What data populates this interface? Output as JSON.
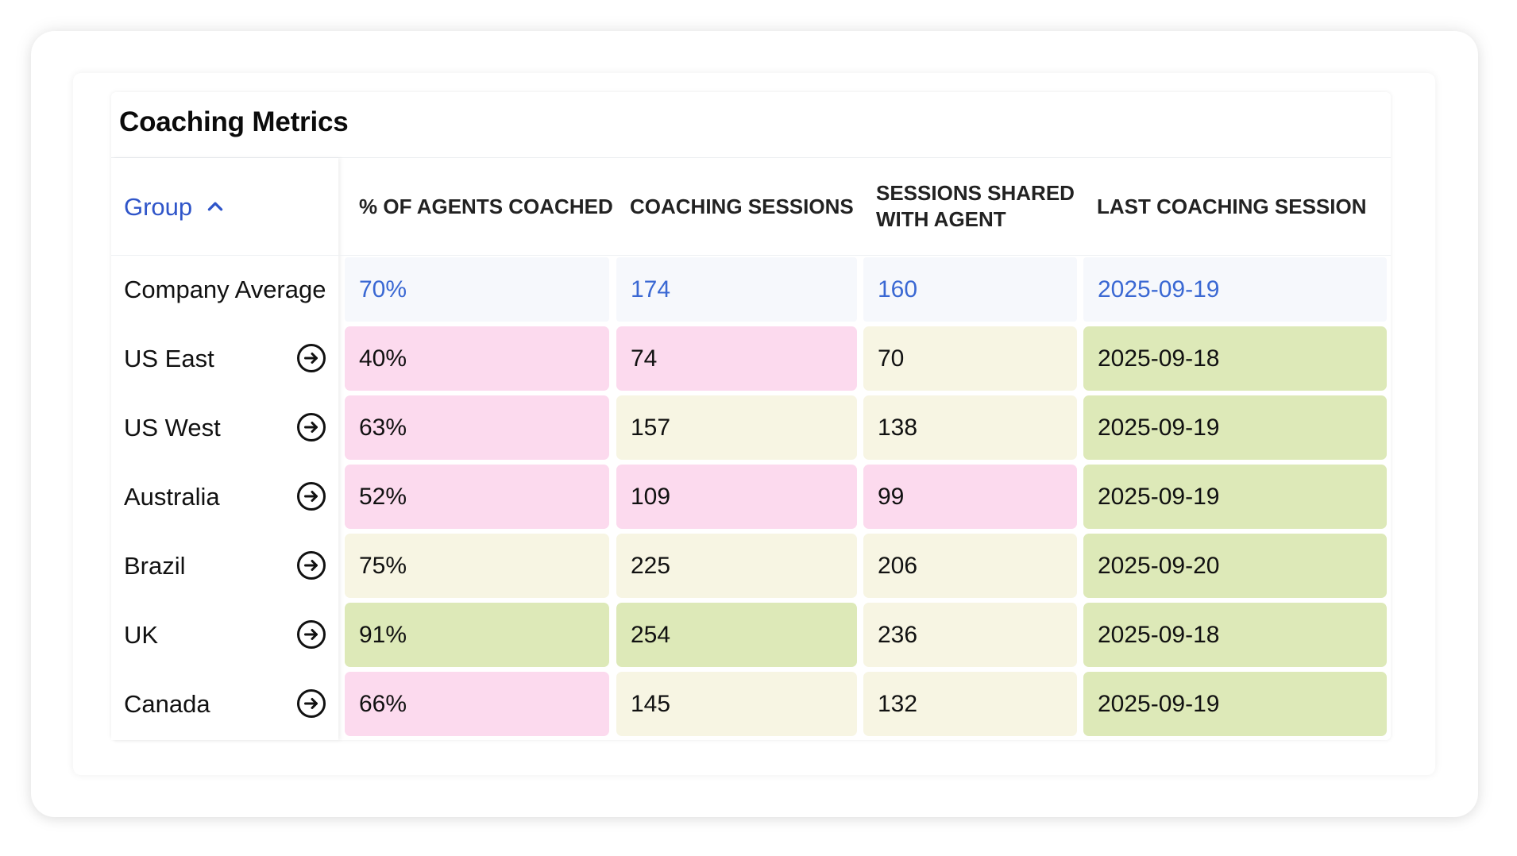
{
  "title": "Coaching Metrics",
  "columns": {
    "group": "Group",
    "agents_coached": "% OF AGENTS COACHED",
    "coaching_sessions": "COACHING SESSIONS",
    "sessions_shared": "SESSIONS SHARED WITH AGENT",
    "last_session": "LAST COACHING SESSION"
  },
  "sort_icon": "chevron-up-icon",
  "row_action_icon": "arrow-right-circle-icon",
  "colors": {
    "accent": "#2f55c9",
    "low": "#fcdaee",
    "mid": "#f7f5e3",
    "high": "#dde9b8",
    "average_bg": "#f6f8fc"
  },
  "company_average": {
    "name": "Company Average",
    "agents_coached": "70%",
    "coaching_sessions": "174",
    "sessions_shared": "160",
    "last_session": "2025-09-19"
  },
  "rows": [
    {
      "name": "US East",
      "agents_coached": "40%",
      "agents_level": "low",
      "coaching_sessions": "74",
      "sessions_level": "low",
      "sessions_shared": "70",
      "shared_level": "mid",
      "last_session": "2025-09-18",
      "last_level": "high"
    },
    {
      "name": "US West",
      "agents_coached": "63%",
      "agents_level": "low",
      "coaching_sessions": "157",
      "sessions_level": "mid",
      "sessions_shared": "138",
      "shared_level": "mid",
      "last_session": "2025-09-19",
      "last_level": "high"
    },
    {
      "name": "Australia",
      "agents_coached": "52%",
      "agents_level": "low",
      "coaching_sessions": "109",
      "sessions_level": "low",
      "sessions_shared": "99",
      "shared_level": "low",
      "last_session": "2025-09-19",
      "last_level": "high"
    },
    {
      "name": "Brazil",
      "agents_coached": "75%",
      "agents_level": "mid",
      "coaching_sessions": "225",
      "sessions_level": "mid",
      "sessions_shared": "206",
      "shared_level": "mid",
      "last_session": "2025-09-20",
      "last_level": "high"
    },
    {
      "name": "UK",
      "agents_coached": "91%",
      "agents_level": "high",
      "coaching_sessions": "254",
      "sessions_level": "high",
      "sessions_shared": "236",
      "shared_level": "mid",
      "last_session": "2025-09-18",
      "last_level": "high"
    },
    {
      "name": "Canada",
      "agents_coached": "66%",
      "agents_level": "low",
      "coaching_sessions": "145",
      "sessions_level": "mid",
      "sessions_shared": "132",
      "shared_level": "mid",
      "last_session": "2025-09-19",
      "last_level": "high"
    }
  ]
}
